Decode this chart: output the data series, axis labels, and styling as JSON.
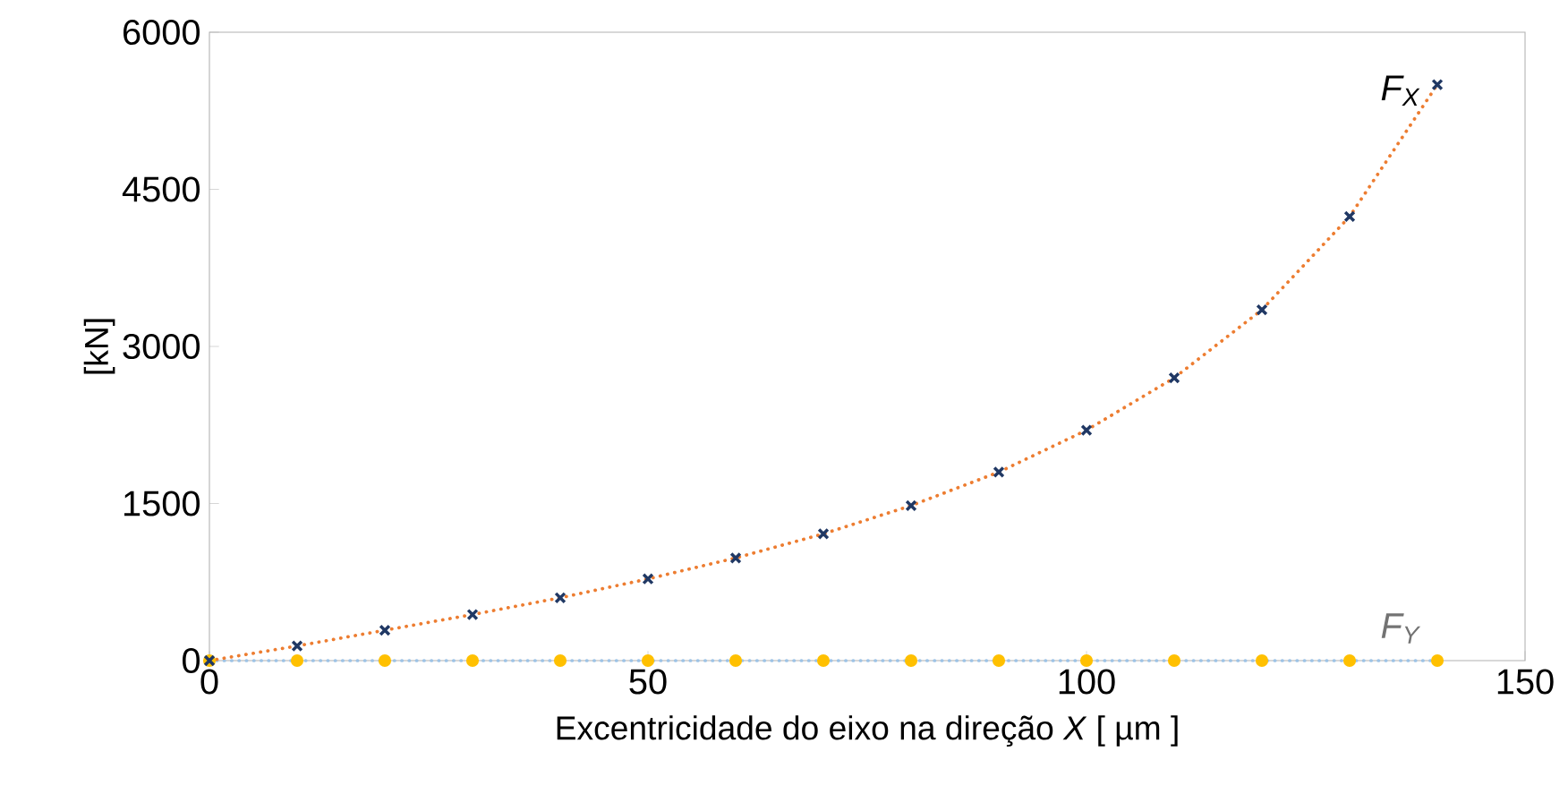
{
  "chart_data": {
    "type": "scatter",
    "xlabel": "Excentricidade do eixo na direção *X*  [ µm ]",
    "ylabel": "[kN]",
    "x": [
      0,
      10,
      20,
      30,
      40,
      50,
      60,
      70,
      80,
      90,
      100,
      110,
      120,
      130,
      140
    ],
    "xlim": [
      0,
      150
    ],
    "xticks": [
      0,
      50,
      100,
      150
    ],
    "ylim": [
      0,
      6000
    ],
    "yticks": [
      0,
      1500,
      3000,
      4500,
      6000
    ],
    "series": [
      {
        "name": "F$_{X}$",
        "color": "#203864",
        "marker": "cross",
        "values": [
          0,
          140,
          290,
          440,
          600,
          780,
          980,
          1210,
          1480,
          1800,
          2200,
          2700,
          3350,
          4240,
          5500
        ]
      },
      {
        "type": "line",
        "color": "#ed7d31",
        "line_style": "dotted",
        "marker": "none",
        "values": [
          0,
          140,
          290,
          440,
          600,
          780,
          980,
          1210,
          1480,
          1800,
          2200,
          2700,
          3350,
          4240,
          5500
        ]
      },
      {
        "name": "F$_{Y}$",
        "color": "#ffc000",
        "marker": "circle",
        "values": [
          0,
          0,
          0,
          0,
          0,
          0,
          0,
          0,
          0,
          0,
          0,
          0,
          0,
          0,
          0
        ]
      },
      {
        "type": "line",
        "color": "#9dc3e6",
        "line_style": "dotted",
        "marker": "none",
        "values": [
          0,
          0,
          0,
          0,
          0,
          0,
          0,
          0,
          0,
          0,
          0,
          0,
          0,
          0,
          0
        ]
      }
    ]
  }
}
